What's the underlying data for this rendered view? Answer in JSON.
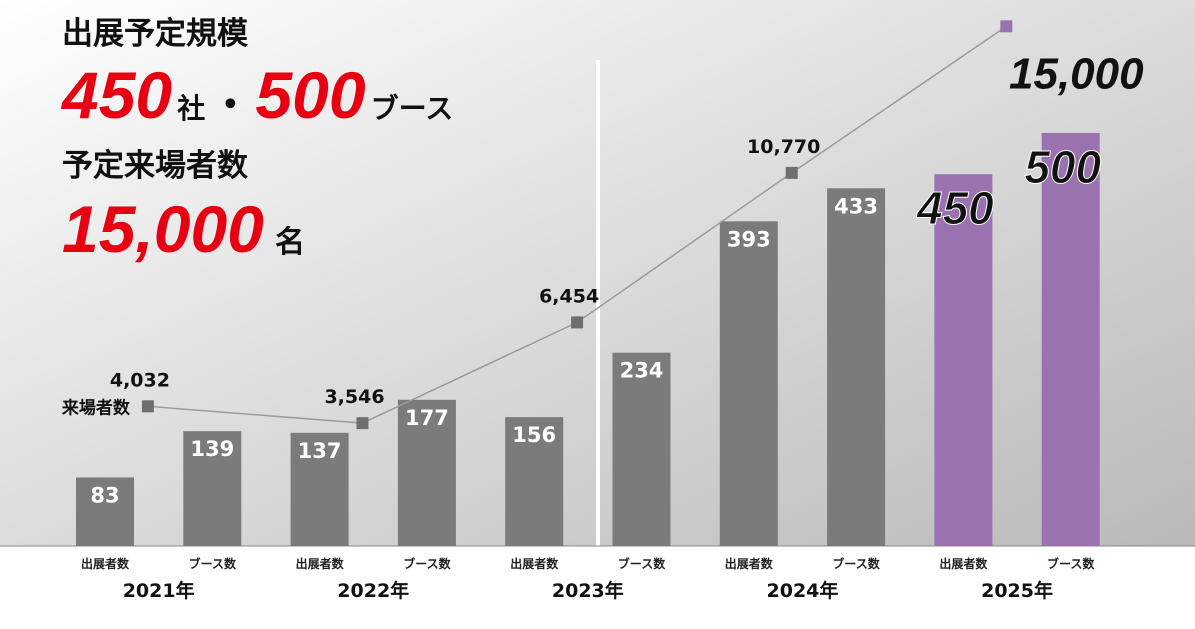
{
  "header": {
    "title": "出展予定規模",
    "exhibitors": "450",
    "exhibitors_unit": "社",
    "separator": "・",
    "booths": "500",
    "booths_unit": "ブース",
    "visitors_title": "予定来場者数",
    "visitors": "15,000",
    "visitors_unit": "名"
  },
  "chart_data": {
    "type": "bar",
    "categories": [
      "出展者数",
      "ブース数",
      "出展者数",
      "ブース数",
      "出展者数",
      "ブース数",
      "出展者数",
      "ブース数",
      "出展者数",
      "ブース数"
    ],
    "groups": [
      "2021年",
      "2022年",
      "2023年",
      "2024年",
      "2025年"
    ],
    "values": [
      83,
      139,
      137,
      177,
      156,
      234,
      393,
      433,
      450,
      500
    ],
    "colors": [
      "#7b7b7b",
      "#7b7b7b",
      "#7b7b7b",
      "#7b7b7b",
      "#7b7b7b",
      "#7b7b7b",
      "#7b7b7b",
      "#7b7b7b",
      "#9b72b0",
      "#9b72b0"
    ],
    "ylim": [
      0,
      650
    ],
    "y2lim": [
      0,
      15500
    ],
    "line": {
      "type": "line",
      "name": "来場者数",
      "axis": "y2",
      "color": "#9a9a9a",
      "marker_color": "#6e6e6e",
      "values": [
        4032,
        3546,
        6454,
        10770,
        15000
      ],
      "value_labels": [
        "4,032",
        "3,546",
        "6,454",
        "10,770",
        "15,000"
      ]
    }
  }
}
